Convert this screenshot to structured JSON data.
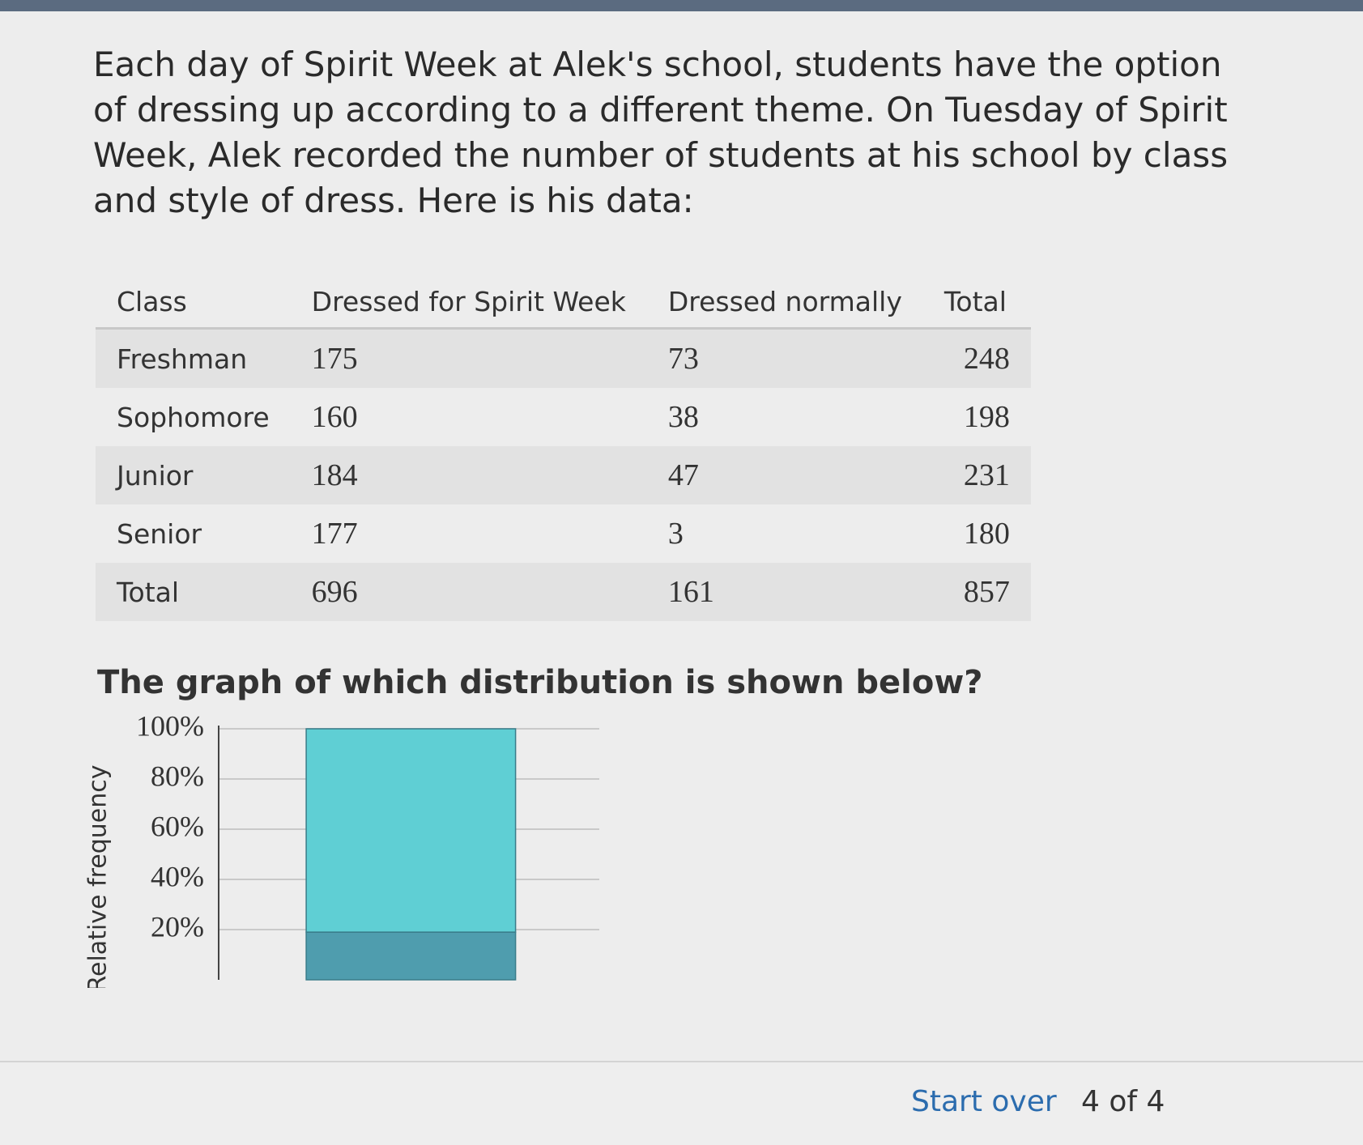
{
  "question": {
    "text": "Each day of Spirit Week at Alek's school, students have the option of dressing up according to a different theme. On Tuesday of Spirit Week, Alek recorded the number of students at his school by class and style of dress. Here is his data:"
  },
  "table": {
    "header": [
      "Class",
      "Dressed for Spirit Week",
      "Dressed normally",
      "Total"
    ],
    "rows": [
      [
        "Freshman",
        175,
        73,
        248
      ],
      [
        "Sophomore",
        160,
        38,
        198
      ],
      [
        "Junior",
        184,
        47,
        231
      ],
      [
        "Senior",
        177,
        3,
        180
      ],
      [
        "Total",
        696,
        161,
        857
      ]
    ]
  },
  "prompt": "The graph of which distribution is shown below?",
  "chart_data": {
    "type": "stacked_bar",
    "y_label": "Relative frequency",
    "categories": [
      null
    ],
    "series": [
      {
        "color": "#4f9dae",
        "values": [
          19
        ]
      },
      {
        "color": "#5fcfd4",
        "values": [
          81
        ]
      }
    ],
    "ylim": [
      0,
      100
    ],
    "yticks": [
      {
        "value": 20,
        "label": "20%"
      },
      {
        "value": 40,
        "label": "40%"
      },
      {
        "value": 60,
        "label": "60%"
      },
      {
        "value": 80,
        "label": "80%"
      },
      {
        "value": 100,
        "label": "100%"
      }
    ],
    "grid": true
  },
  "footer": {
    "start_over": "Start over",
    "progress": "4 of 4"
  }
}
